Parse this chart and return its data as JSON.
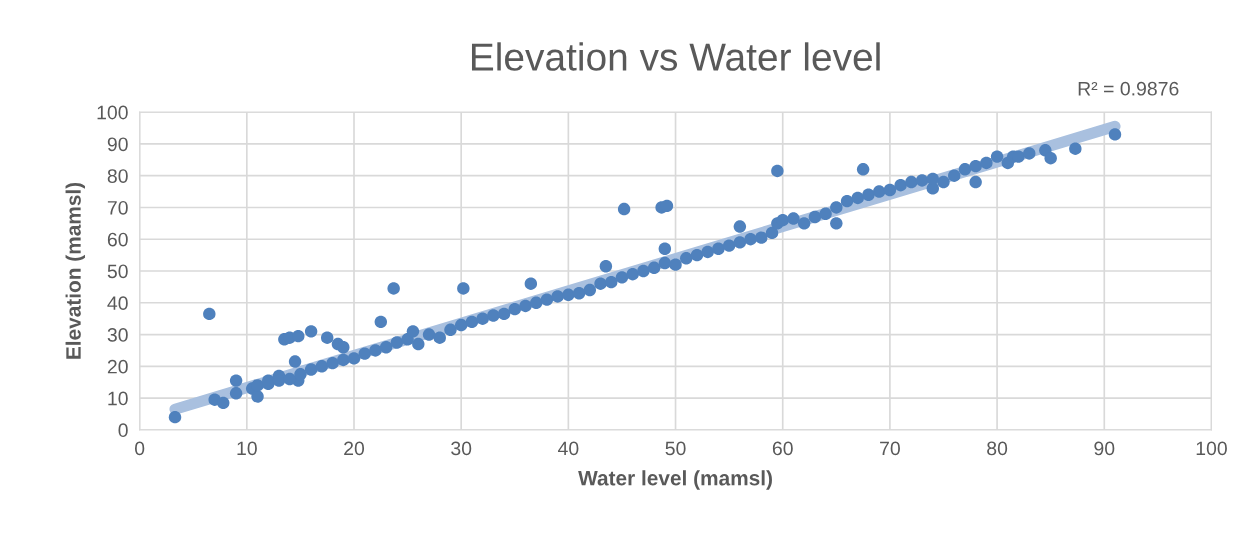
{
  "chart_data": {
    "type": "scatter",
    "title": "Elevation vs Water level",
    "xlabel": "Water level (mamsl)",
    "ylabel": "Elevation (mamsl)",
    "annotations": [
      "R² = 0.9876"
    ],
    "xlim": [
      0,
      100
    ],
    "xticks": [
      0,
      10,
      20,
      30,
      40,
      50,
      60,
      70,
      80,
      90,
      100
    ],
    "ylim": [
      0,
      100
    ],
    "yticks": [
      0,
      10,
      20,
      30,
      40,
      50,
      60,
      70,
      80,
      90,
      100
    ],
    "grid": true,
    "series": [
      {
        "type": "line",
        "color": "#a9c0df",
        "line_style": "solid",
        "marker": "none",
        "x": [
          3.3,
          91
        ],
        "values": [
          6.5,
          95.5
        ]
      },
      {
        "color": "#4f81bd",
        "marker": "circle",
        "x": [
          3.3,
          6.5,
          7,
          7.8,
          9,
          9,
          10.5,
          11,
          11,
          12,
          13,
          13.5,
          14,
          14.5,
          14.8,
          14.8,
          16,
          17.5,
          18.5,
          19,
          22.5,
          23.7,
          30.2,
          36.5,
          43.5,
          45.2,
          48.7,
          49.2,
          49,
          56,
          59.5,
          67.5,
          84.5,
          85,
          87.3,
          91,
          81.5,
          78,
          74,
          65,
          12,
          13,
          14,
          15,
          16,
          17,
          18,
          19,
          20,
          21,
          22,
          23,
          24,
          25,
          25.5,
          26,
          27,
          28,
          29,
          30,
          31,
          32,
          33,
          34,
          35,
          36,
          37,
          38,
          39,
          40,
          41,
          42,
          43,
          44,
          45,
          46,
          47,
          48,
          49,
          50,
          51,
          52,
          53,
          54,
          55,
          56,
          57,
          58,
          59,
          59.5,
          60,
          61,
          62,
          63,
          64,
          65,
          66,
          67,
          68,
          69,
          70,
          71,
          72,
          73,
          74,
          75,
          76,
          77,
          78,
          79,
          80,
          81,
          82,
          83
        ],
        "values": [
          4,
          36.5,
          9.5,
          8.5,
          15.5,
          11.5,
          13,
          10.5,
          14,
          15.5,
          17,
          28.5,
          29,
          21.5,
          29.5,
          15.5,
          31,
          29,
          27,
          26,
          34,
          44.5,
          44.5,
          46,
          51.5,
          69.5,
          70,
          70.5,
          57,
          64,
          81.5,
          82,
          88,
          85.5,
          88.5,
          93,
          86,
          78,
          76,
          65,
          14.5,
          15.5,
          16,
          17.5,
          19,
          20,
          21,
          22,
          22.5,
          24,
          25,
          26,
          27.5,
          28.5,
          31,
          27,
          30,
          29,
          31.5,
          33,
          34,
          35,
          36,
          36.5,
          38,
          39,
          40,
          41,
          42,
          42.5,
          43,
          44,
          46,
          46.5,
          48,
          49,
          50,
          51,
          52.5,
          52,
          54,
          55,
          56,
          57,
          58,
          59,
          60,
          60.5,
          62,
          65,
          66,
          66.5,
          65,
          67,
          68,
          70,
          72,
          73,
          74,
          75,
          75.5,
          77,
          78,
          78.5,
          79,
          78,
          80,
          82,
          83,
          84,
          86,
          84,
          86,
          87
        ]
      }
    ]
  }
}
